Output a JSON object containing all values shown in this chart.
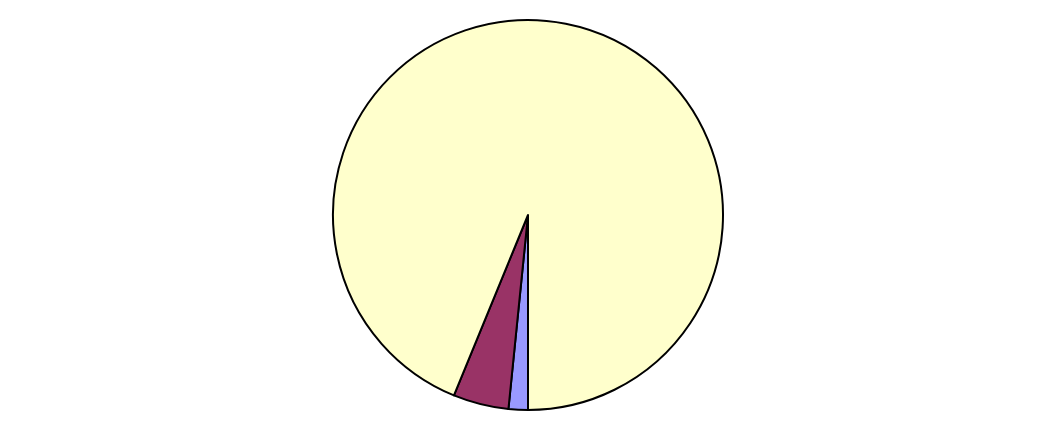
{
  "chart_data": {
    "type": "pie",
    "categories": [
      null,
      null,
      null
    ],
    "values": [
      1.6,
      4.6,
      93.8
    ],
    "colors": [
      "#9999ff",
      "#993366",
      "#ffffcc"
    ]
  }
}
